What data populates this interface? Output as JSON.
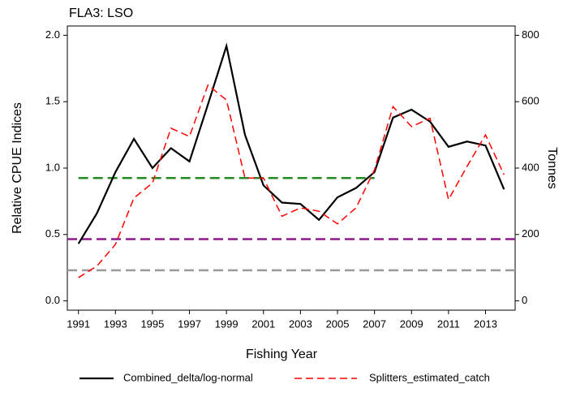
{
  "chart_data": {
    "type": "line",
    "title": "FLA3: LSO",
    "x_label": "Fishing Year",
    "y_label": "Relative CPUE Indices",
    "y2_label": "Tonnes",
    "x": [
      1991,
      1992,
      1993,
      1994,
      1995,
      1996,
      1997,
      1998,
      1999,
      2000,
      2001,
      2002,
      2003,
      2004,
      2005,
      2006,
      2007,
      2008,
      2009,
      2010,
      2011,
      2012,
      2013,
      2014
    ],
    "xlim": [
      1990.4,
      2014.6
    ],
    "xticks": [
      1991,
      1993,
      1995,
      1997,
      1999,
      2001,
      2003,
      2005,
      2007,
      2009,
      2011,
      2013
    ],
    "ylim": [
      -0.07,
      2.07
    ],
    "yticks": [
      {
        "value": 0,
        "label": "0.0"
      },
      {
        "value": 0.5,
        "label": "0.5"
      },
      {
        "value": 1,
        "label": "1.0"
      },
      {
        "value": 1.5,
        "label": "1.5"
      },
      {
        "value": 2,
        "label": "2.0"
      }
    ],
    "y2lim": [
      -28,
      828
    ],
    "y2ticks": [
      0,
      200,
      400,
      600,
      800
    ],
    "series": [
      {
        "name": "Combined_delta/log-normal",
        "color": "#000000",
        "dash": "solid",
        "values": [
          0.43,
          0.66,
          0.97,
          1.22,
          1.0,
          1.15,
          1.05,
          1.48,
          1.92,
          1.25,
          0.87,
          0.74,
          0.73,
          0.61,
          0.78,
          0.85,
          0.97,
          1.38,
          1.44,
          1.35,
          1.16,
          1.2,
          1.17,
          0.84
        ]
      },
      {
        "name": "Splitters_estimated_catch",
        "color": "#ff0000",
        "dash": "dashed",
        "axis": "y2",
        "values": [
          70,
          105,
          170,
          310,
          355,
          520,
          495,
          650,
          605,
          370,
          370,
          255,
          280,
          270,
          232,
          280,
          395,
          585,
          525,
          550,
          305,
          405,
          500,
          380
        ]
      }
    ],
    "reference_lines": [
      {
        "value": 0.925,
        "color": "#228b22",
        "x": [
          1991,
          2007
        ]
      },
      {
        "value": 0.465,
        "color": "#8b1a8b"
      },
      {
        "value": 0.23,
        "color": "#999999"
      }
    ]
  }
}
